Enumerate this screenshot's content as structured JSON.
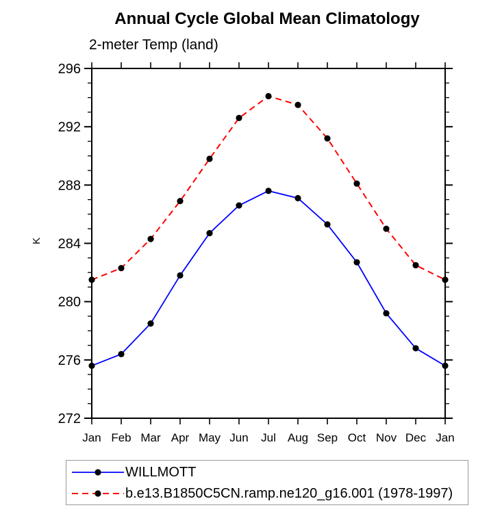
{
  "page": {
    "background": "#ffffff"
  },
  "chart_data": {
    "type": "line",
    "title": "Annual Cycle Global Mean Climatology",
    "subtitle": "2-meter Temp (land)",
    "ylabel": "K",
    "xlabel": "",
    "categories": [
      "Jan",
      "Feb",
      "Mar",
      "Apr",
      "May",
      "Jun",
      "Jul",
      "Aug",
      "Sep",
      "Oct",
      "Nov",
      "Dec",
      "Jan"
    ],
    "ylim": [
      272,
      296
    ],
    "yticks_major": [
      272,
      276,
      280,
      284,
      288,
      292,
      296
    ],
    "ytick_minor_step": 1,
    "grid": false,
    "frame": "box-with-outward-ticks",
    "legend_position": "bottom",
    "axis_color": "#000000",
    "legend_border_color": "#999999",
    "marker_color": "#000000",
    "series": [
      {
        "name": "WILLMOTT",
        "color": "#0000ff",
        "line_style": "solid",
        "marker": "filled-black-circle",
        "values": [
          275.6,
          276.4,
          278.5,
          281.8,
          284.7,
          286.6,
          287.6,
          287.1,
          285.3,
          282.7,
          279.2,
          276.8,
          275.6
        ]
      },
      {
        "name": "b.e13.B1850C5CN.ramp.ne120_g16.001 (1978-1997)",
        "color": "#ff0000",
        "line_style": "dashed",
        "marker": "filled-black-circle",
        "values": [
          281.5,
          282.3,
          284.3,
          286.9,
          289.8,
          292.6,
          294.1,
          293.5,
          291.2,
          288.1,
          285.0,
          282.5,
          281.5
        ]
      }
    ]
  }
}
